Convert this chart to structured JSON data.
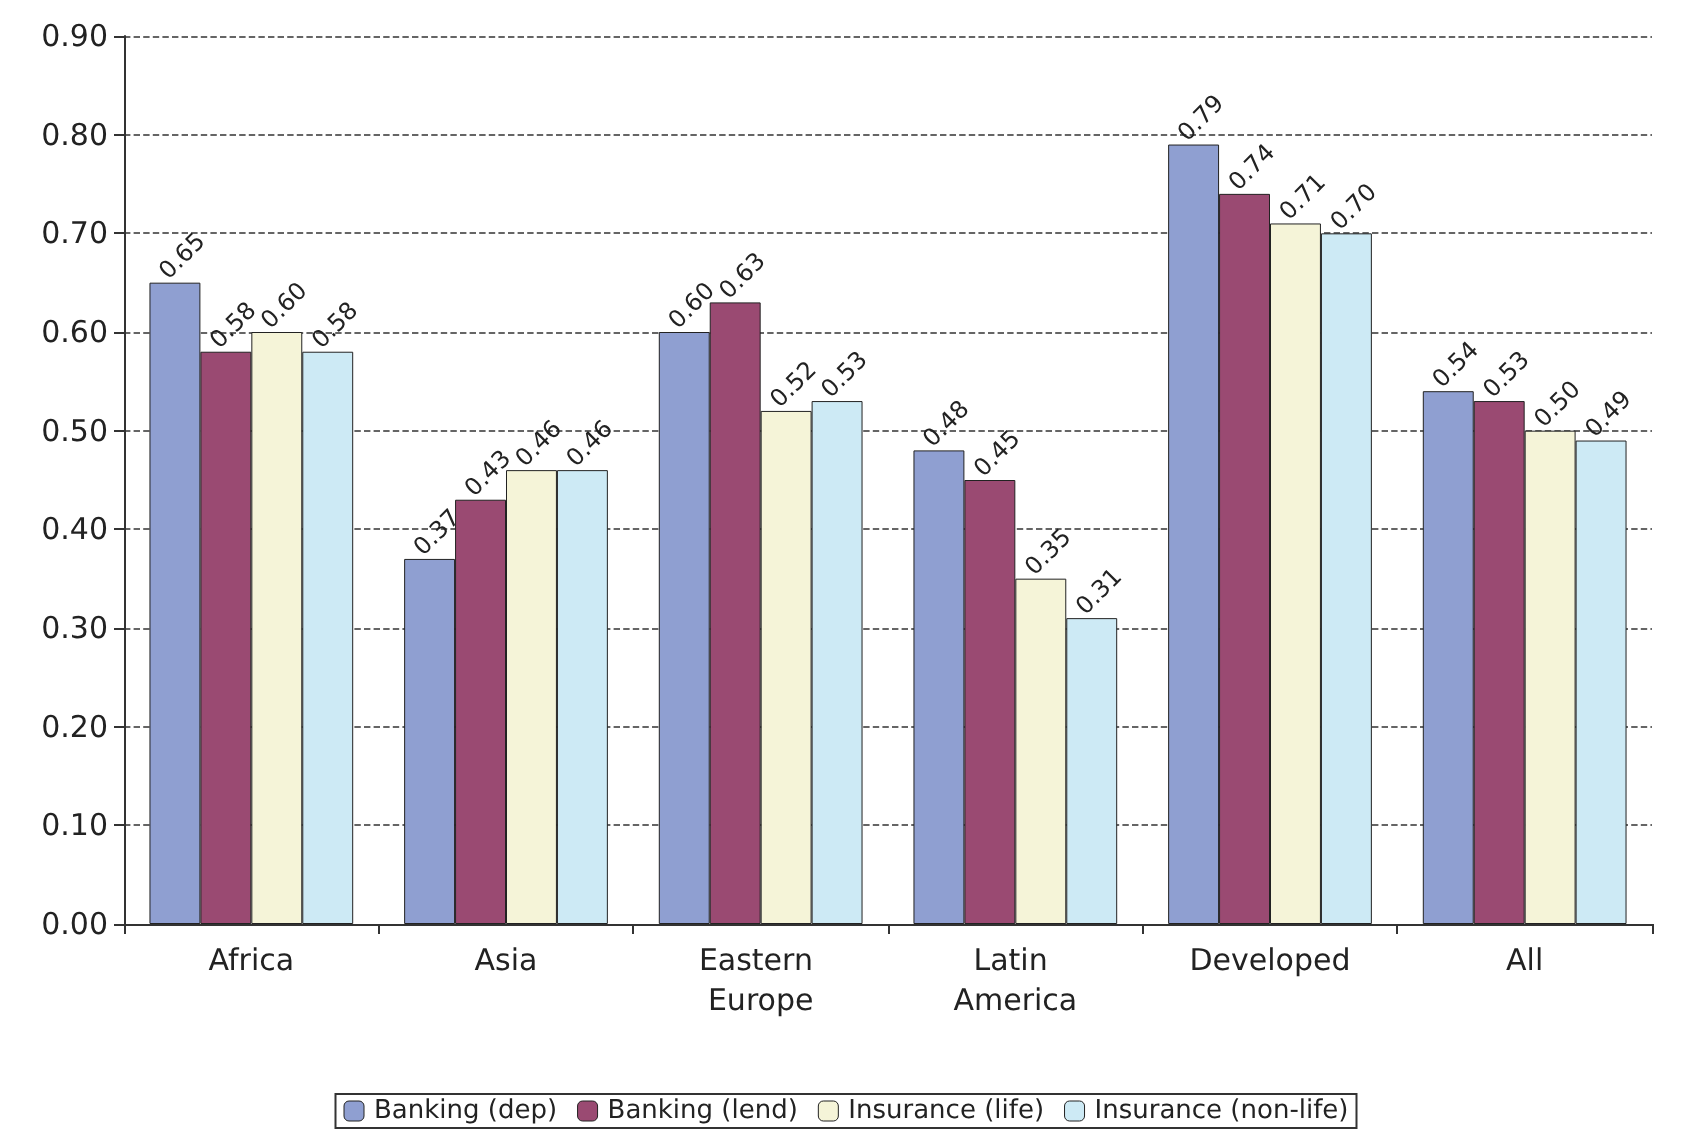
{
  "chart_data": {
    "type": "bar",
    "categories": [
      "Africa",
      "Asia",
      "Eastern Europe",
      "Latin America",
      "Developed",
      "All"
    ],
    "series": [
      {
        "name": "Banking (dep)",
        "color": "#8f9fd1",
        "values": [
          0.65,
          0.37,
          0.6,
          0.48,
          0.79,
          0.54
        ],
        "value_labels": [
          "0.65",
          "0.37",
          "0.60",
          "0.48",
          "0.79",
          "0.54"
        ]
      },
      {
        "name": "Banking (lend)",
        "color": "#9a4a72",
        "values": [
          0.58,
          0.43,
          0.63,
          0.45,
          0.74,
          0.53
        ],
        "value_labels": [
          "0.58",
          "0.43",
          "0.63",
          "0.45",
          "0.74",
          "0.53"
        ]
      },
      {
        "name": "Insurance (life)",
        "color": "#f5f4d8",
        "values": [
          0.6,
          0.46,
          0.52,
          0.35,
          0.71,
          0.5
        ],
        "value_labels": [
          "0.60",
          "0.46",
          "0.52",
          "0.35",
          "0.71",
          "0.50"
        ]
      },
      {
        "name": "Insurance (non-life)",
        "color": "#cdeaf5",
        "values": [
          0.58,
          0.46,
          0.53,
          0.31,
          0.7,
          0.49
        ],
        "value_labels": [
          "0.58",
          "0.46",
          "0.53",
          "0.31",
          "0.70",
          "0.49"
        ]
      }
    ],
    "ylim": [
      0,
      0.9
    ],
    "yticks": [
      {
        "value": 0,
        "label": "0.00"
      },
      {
        "value": 0.1,
        "label": "0.10"
      },
      {
        "value": 0.2,
        "label": "0.20"
      },
      {
        "value": 0.3,
        "label": "0.30"
      },
      {
        "value": 0.4,
        "label": "0.40"
      },
      {
        "value": 0.5,
        "label": "0.50"
      },
      {
        "value": 0.6,
        "label": "0.60"
      },
      {
        "value": 0.7,
        "label": "0.70"
      },
      {
        "value": 0.8,
        "label": "0.80"
      },
      {
        "value": 0.9,
        "label": "0.90"
      }
    ],
    "grid": "y",
    "legend": "bottom"
  }
}
